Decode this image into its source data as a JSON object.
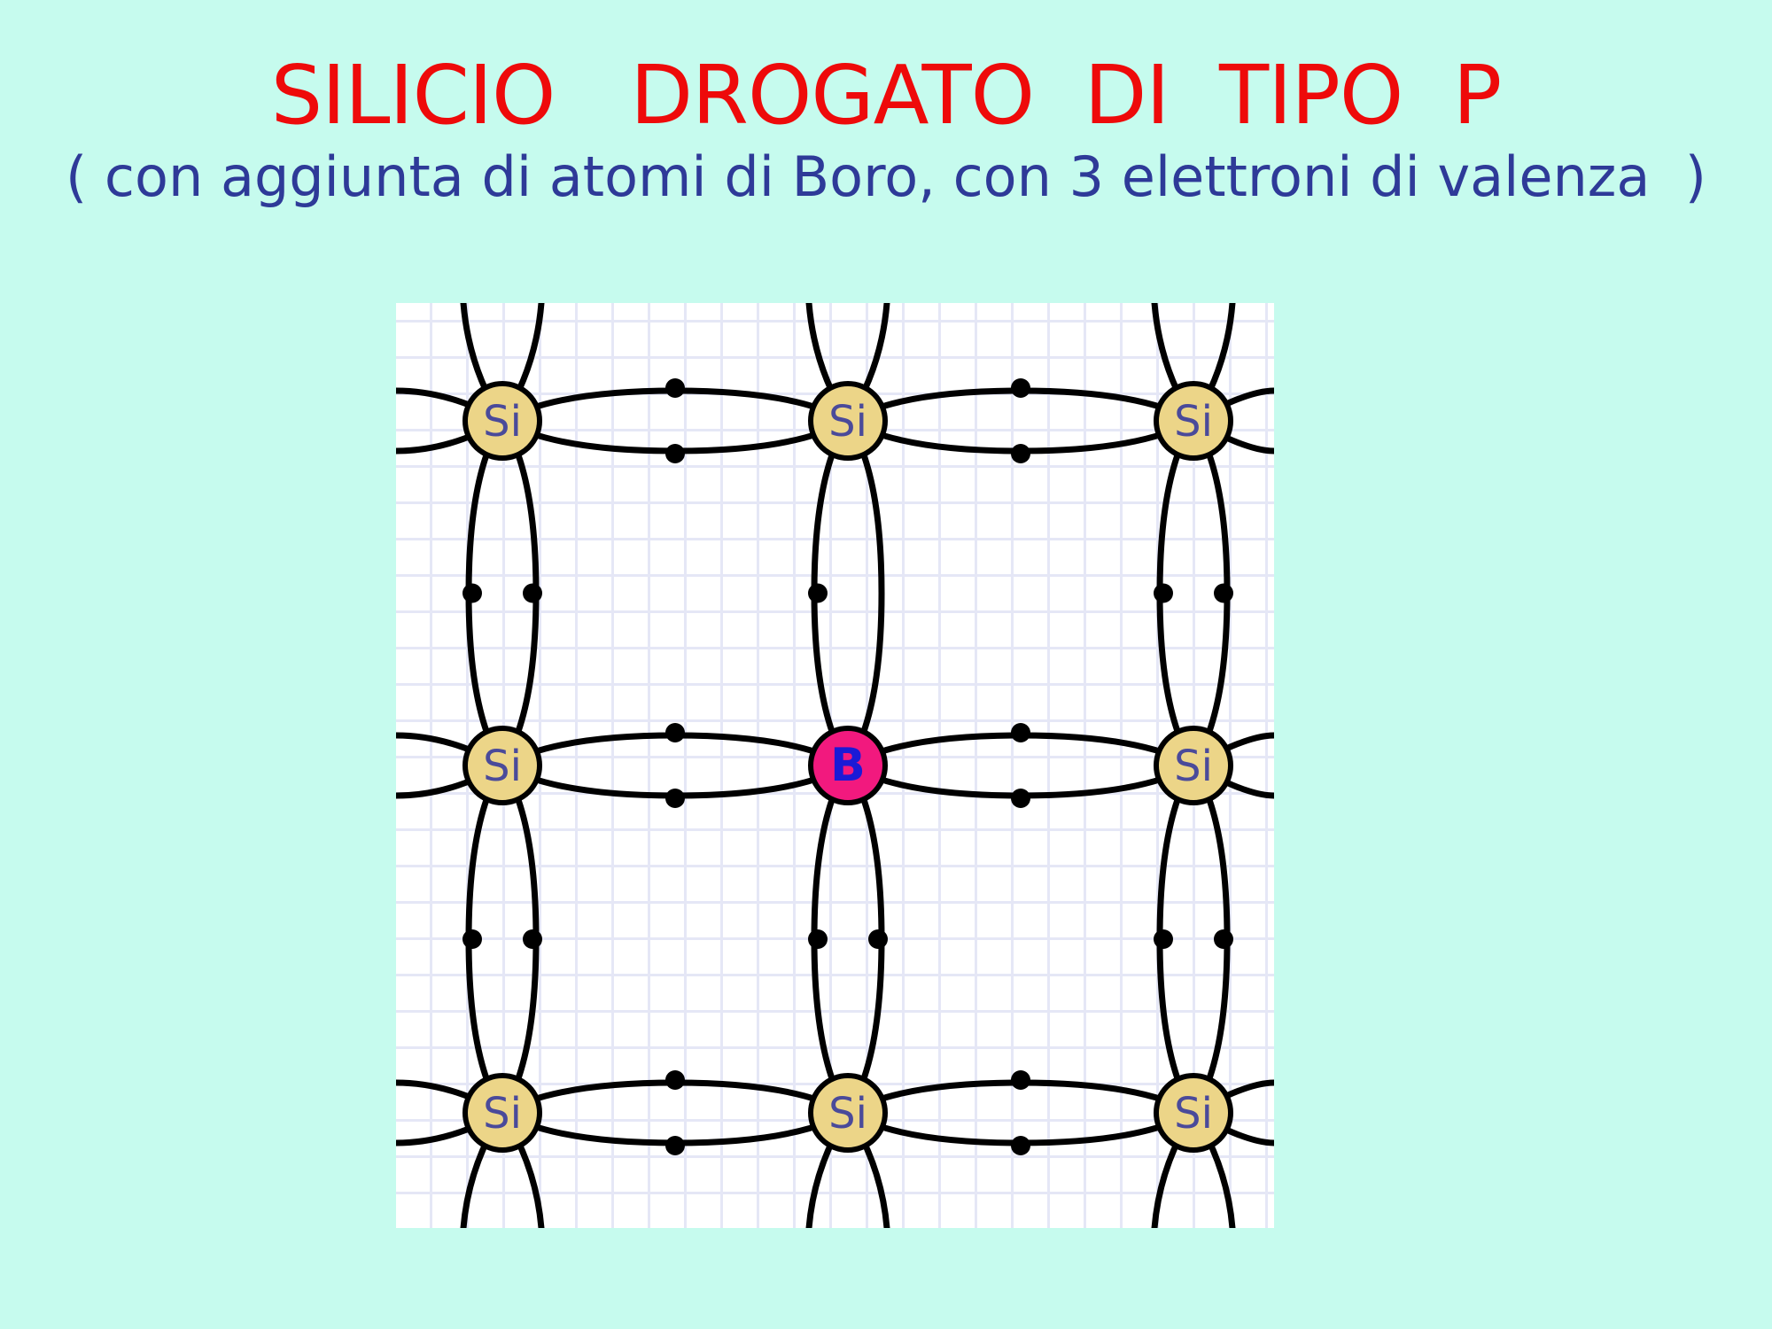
{
  "title": "SILICIO   DROGATO  DI  TIPO  P",
  "subtitle": "( con aggiunta di atomi di Boro, con 3 elettroni di valenza  )",
  "lattice": {
    "atoms": [
      {
        "label": "Si",
        "element": "silicon"
      },
      {
        "label": "Si",
        "element": "silicon"
      },
      {
        "label": "Si",
        "element": "silicon"
      },
      {
        "label": "Si",
        "element": "silicon"
      },
      {
        "label": "B",
        "element": "boron"
      },
      {
        "label": "Si",
        "element": "silicon"
      },
      {
        "label": "Si",
        "element": "silicon"
      },
      {
        "label": "Si",
        "element": "silicon"
      },
      {
        "label": "Si",
        "element": "silicon"
      }
    ],
    "colors": {
      "background": "#c6fbee",
      "title": "#ee0a0a",
      "subtitle": "#2e3a98",
      "silicon": "#ecd588",
      "boron": "#f2197e",
      "bond": "#000000"
    }
  }
}
